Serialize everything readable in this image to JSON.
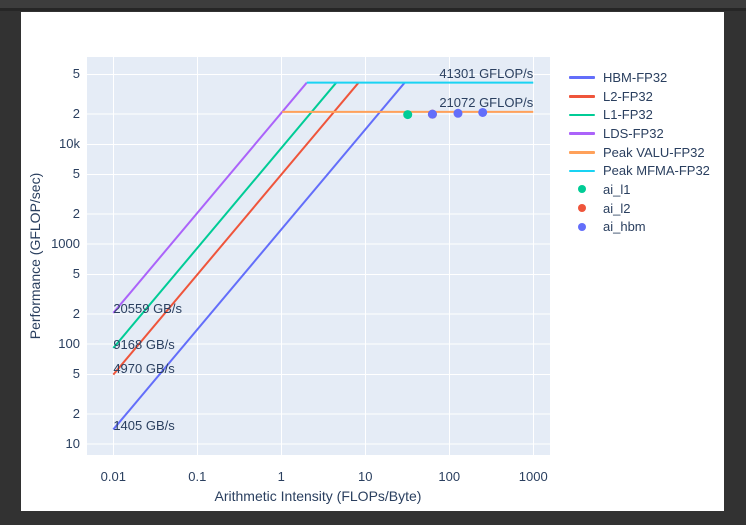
{
  "colors": {
    "page_background": "#323232",
    "card_background": "#ffffff",
    "text": "#2a3f5f"
  },
  "chart_data": {
    "type": "line",
    "subtype": "roofline",
    "title": "",
    "xlabel": "Arithmetic Intensity (FLOPs/Byte)",
    "ylabel": "Performance (GFLOP/sec)",
    "x_scale": "log",
    "y_scale": "log",
    "xlim": [
      0.00486,
      1582
    ],
    "ylim": [
      7.8,
      74600
    ],
    "grid": true,
    "plot_bgcolor": "#E5ECF6",
    "grid_color": "#FFFFFF",
    "x_ticks": [
      {
        "value": 0.01,
        "label": "0.01"
      },
      {
        "value": 0.1,
        "label": "0.1"
      },
      {
        "value": 1,
        "label": "1"
      },
      {
        "value": 10,
        "label": "10"
      },
      {
        "value": 100,
        "label": "100"
      },
      {
        "value": 1000,
        "label": "1000"
      }
    ],
    "y_ticks": [
      {
        "value": 50000,
        "label": "5"
      },
      {
        "value": 20000,
        "label": "2"
      },
      {
        "value": 10000,
        "label": "10k"
      },
      {
        "value": 5000,
        "label": "5"
      },
      {
        "value": 2000,
        "label": "2"
      },
      {
        "value": 1000,
        "label": "1000"
      },
      {
        "value": 500,
        "label": "5"
      },
      {
        "value": 200,
        "label": "2"
      },
      {
        "value": 100,
        "label": "100"
      },
      {
        "value": 50,
        "label": "5"
      },
      {
        "value": 20,
        "label": "2"
      },
      {
        "value": 10,
        "label": "10"
      }
    ],
    "series": [
      {
        "name": "HBM-FP32",
        "color": "#636EFA",
        "bandwidth_gb_s": 1405,
        "points": [
          [
            0.01,
            14.05
          ],
          [
            29.39,
            41301
          ]
        ]
      },
      {
        "name": "L2-FP32",
        "color": "#EF553B",
        "bandwidth_gb_s": 4970,
        "points": [
          [
            0.01,
            49.7
          ],
          [
            8.31,
            41301
          ]
        ]
      },
      {
        "name": "L1-FP32",
        "color": "#00CC96",
        "bandwidth_gb_s": 9168,
        "points": [
          [
            0.01,
            91.68
          ],
          [
            4.505,
            41301
          ]
        ]
      },
      {
        "name": "LDS-FP32",
        "color": "#AB63FA",
        "bandwidth_gb_s": 20559,
        "points": [
          [
            0.01,
            205.59
          ],
          [
            2.009,
            41301
          ]
        ]
      },
      {
        "name": "Peak VALU-FP32",
        "color": "#FFA15A",
        "peak_gflops": 21072,
        "points": [
          [
            1.025,
            21072
          ],
          [
            1000,
            21072
          ]
        ]
      },
      {
        "name": "Peak MFMA-FP32",
        "color": "#19D3F3",
        "peak_gflops": 41301,
        "points": [
          [
            2.009,
            41301
          ],
          [
            1000,
            41301
          ]
        ]
      }
    ],
    "scatter_series": [
      {
        "name": "ai_l1",
        "color": "#00CC96",
        "points": [
          [
            32,
            19800
          ]
        ]
      },
      {
        "name": "ai_l2",
        "color": "#EF553B",
        "points": [
          [
            63,
            20000
          ]
        ],
        "note": "marker occluded by ai_hbm marker at same location"
      },
      {
        "name": "ai_hbm",
        "color": "#636EFA",
        "points": [
          [
            63,
            20000
          ],
          [
            127,
            20400
          ],
          [
            250,
            20800
          ]
        ]
      }
    ],
    "annotations": [
      {
        "text": "41301 GFLOP/s",
        "x": 1000,
        "y": 50000,
        "align": "end"
      },
      {
        "text": "21072 GFLOP/s",
        "x": 1000,
        "y": 26000,
        "align": "end"
      },
      {
        "text": "20559 GB/s",
        "x": 0.01,
        "y": 225,
        "align": "start"
      },
      {
        "text": "9168 GB/s",
        "x": 0.01,
        "y": 98,
        "align": "start"
      },
      {
        "text": "4970 GB/s",
        "x": 0.01,
        "y": 57,
        "align": "start"
      },
      {
        "text": "1405 GB/s",
        "x": 0.01,
        "y": 15.2,
        "align": "start"
      }
    ],
    "legend": {
      "position": "right",
      "items": [
        {
          "label": "HBM-FP32",
          "color": "#636EFA",
          "marker": "line"
        },
        {
          "label": "L2-FP32",
          "color": "#EF553B",
          "marker": "line"
        },
        {
          "label": "L1-FP32",
          "color": "#00CC96",
          "marker": "line"
        },
        {
          "label": "LDS-FP32",
          "color": "#AB63FA",
          "marker": "line"
        },
        {
          "label": "Peak VALU-FP32",
          "color": "#FFA15A",
          "marker": "line"
        },
        {
          "label": "Peak MFMA-FP32",
          "color": "#19D3F3",
          "marker": "line"
        },
        {
          "label": "ai_l1",
          "color": "#00CC96",
          "marker": "dot"
        },
        {
          "label": "ai_l2",
          "color": "#EF553B",
          "marker": "dot"
        },
        {
          "label": "ai_hbm",
          "color": "#636EFA",
          "marker": "dot"
        }
      ]
    }
  }
}
